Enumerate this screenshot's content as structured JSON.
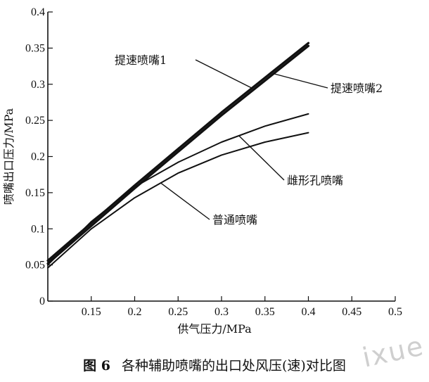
{
  "chart_data": {
    "type": "line",
    "title": "",
    "xlabel": "供气压力/MPa",
    "ylabel": "喷嘴出口压力/MPa",
    "xlim": [
      0.1,
      0.5
    ],
    "ylim": [
      0,
      0.4
    ],
    "x_ticks": [
      "0.15",
      "0.2",
      "0.25",
      "0.3",
      "0.35",
      "0.4",
      "0.45",
      "0.5"
    ],
    "y_ticks": [
      "0",
      "0.05",
      "0.1",
      "0.15",
      "0.2",
      "0.25",
      "0.3",
      "0.35",
      "0.4"
    ],
    "x_tick_values": [
      0.15,
      0.2,
      0.25,
      0.3,
      0.35,
      0.4,
      0.45,
      0.5
    ],
    "y_tick_values": [
      0,
      0.05,
      0.1,
      0.15,
      0.2,
      0.25,
      0.3,
      0.35,
      0.4
    ],
    "grid": false,
    "legend": "none",
    "series": [
      {
        "name": "提速喷嘴1",
        "x": [
          0.1,
          0.2,
          0.3,
          0.4
        ],
        "y": [
          0.056,
          0.16,
          0.261,
          0.357
        ]
      },
      {
        "name": "提速喷嘴2",
        "x": [
          0.1,
          0.2,
          0.3,
          0.4
        ],
        "y": [
          0.052,
          0.156,
          0.257,
          0.353
        ]
      },
      {
        "name": "雌形孔喷嘴",
        "x": [
          0.1,
          0.15,
          0.2,
          0.25,
          0.3,
          0.35,
          0.4
        ],
        "y": [
          0.05,
          0.11,
          0.158,
          0.192,
          0.22,
          0.242,
          0.259
        ]
      },
      {
        "name": "普通喷嘴",
        "x": [
          0.1,
          0.15,
          0.2,
          0.25,
          0.3,
          0.35,
          0.4
        ],
        "y": [
          0.046,
          0.1,
          0.143,
          0.177,
          0.202,
          0.22,
          0.233
        ]
      }
    ],
    "annotations": [
      {
        "text": "提速喷嘴1",
        "series": 0,
        "at_x": 0.335
      },
      {
        "text": "提速喷嘴2",
        "series": 1,
        "at_x": 0.36
      },
      {
        "text": "雌形孔喷嘴",
        "series": 2,
        "at_x": 0.32
      },
      {
        "text": "普通喷嘴",
        "series": 3,
        "at_x": 0.23
      }
    ]
  },
  "caption": {
    "figure_no": "图 6",
    "text": "各种辅助喷嘴的出口处风压(速)对比图"
  },
  "watermark": "ixue"
}
